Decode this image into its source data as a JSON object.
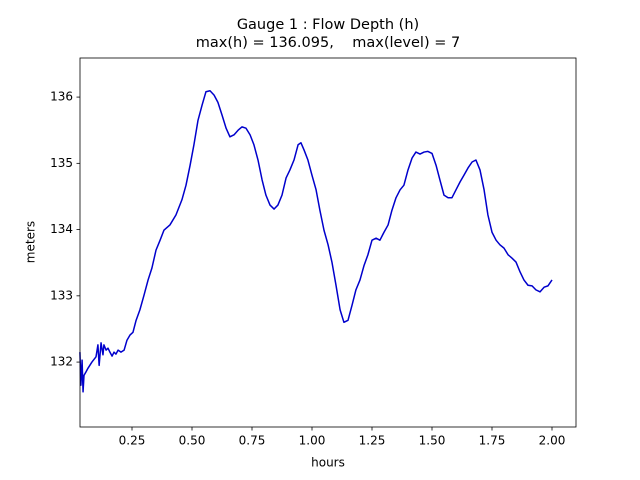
{
  "chart_data": {
    "type": "line",
    "title": "Gauge 1 : Flow Depth (h)",
    "subtitle": "max(h) = 136.095,    max(level) = 7",
    "xlabel": "hours",
    "ylabel": "meters",
    "xlim": [
      0.0333,
      2.1
    ],
    "ylim": [
      131.02,
      136.59
    ],
    "xticks": [
      0.25,
      {
        "value": 0.5,
        "label": "0.50"
      },
      {
        "value": 0.75,
        "label": "0.75"
      },
      {
        "value": 1,
        "label": "1.00"
      },
      1.25,
      {
        "value": 1.5,
        "label": "1.50"
      },
      1.75,
      {
        "value": 2,
        "label": "2.00"
      }
    ],
    "yticks": [
      132,
      133,
      134,
      135,
      136
    ],
    "grid": false,
    "series": [
      {
        "color": "#0000cc",
        "x": [
          0.033,
          0.037,
          0.042,
          0.046,
          0.05,
          0.058,
          0.067,
          0.083,
          0.1,
          0.108,
          0.113,
          0.121,
          0.129,
          0.133,
          0.142,
          0.15,
          0.158,
          0.167,
          0.175,
          0.183,
          0.192,
          0.204,
          0.217,
          0.229,
          0.242,
          0.254,
          0.267,
          0.283,
          0.3,
          0.317,
          0.333,
          0.35,
          0.367,
          0.383,
          0.408,
          0.433,
          0.458,
          0.475,
          0.492,
          0.508,
          0.525,
          0.542,
          0.558,
          0.575,
          0.592,
          0.608,
          0.625,
          0.642,
          0.658,
          0.675,
          0.692,
          0.708,
          0.725,
          0.742,
          0.758,
          0.775,
          0.792,
          0.808,
          0.825,
          0.842,
          0.858,
          0.875,
          0.892,
          0.908,
          0.925,
          0.942,
          0.954,
          0.967,
          0.983,
          1.0,
          1.017,
          1.033,
          1.05,
          1.067,
          1.083,
          1.1,
          1.117,
          1.133,
          1.15,
          1.167,
          1.183,
          1.2,
          1.217,
          1.233,
          1.25,
          1.267,
          1.283,
          1.3,
          1.317,
          1.333,
          1.35,
          1.367,
          1.383,
          1.4,
          1.417,
          1.433,
          1.45,
          1.467,
          1.483,
          1.5,
          1.517,
          1.533,
          1.55,
          1.567,
          1.583,
          1.6,
          1.617,
          1.633,
          1.65,
          1.667,
          1.683,
          1.7,
          1.717,
          1.733,
          1.75,
          1.767,
          1.783,
          1.8,
          1.817,
          1.833,
          1.85,
          1.867,
          1.883,
          1.9,
          1.917,
          1.933,
          1.95,
          1.967,
          1.983,
          2.0
        ],
        "values": [
          132.15,
          131.65,
          132.03,
          131.55,
          131.8,
          131.85,
          131.91,
          132.0,
          132.08,
          132.26,
          131.95,
          132.29,
          132.11,
          132.26,
          132.18,
          132.21,
          132.15,
          132.09,
          132.15,
          132.12,
          132.18,
          132.15,
          132.18,
          132.33,
          132.41,
          132.45,
          132.63,
          132.79,
          133.01,
          133.24,
          133.42,
          133.69,
          133.84,
          133.99,
          134.07,
          134.22,
          134.45,
          134.67,
          134.97,
          135.28,
          135.65,
          135.88,
          136.08,
          136.095,
          136.03,
          135.92,
          135.73,
          135.53,
          135.4,
          135.43,
          135.5,
          135.55,
          135.53,
          135.43,
          135.28,
          135.05,
          134.75,
          134.52,
          134.37,
          134.31,
          134.37,
          134.52,
          134.78,
          134.9,
          135.05,
          135.28,
          135.31,
          135.2,
          135.05,
          134.82,
          134.6,
          134.29,
          133.99,
          133.77,
          133.51,
          133.16,
          132.79,
          132.6,
          132.63,
          132.86,
          133.09,
          133.24,
          133.46,
          133.62,
          133.84,
          133.87,
          133.84,
          133.96,
          134.07,
          134.29,
          134.48,
          134.6,
          134.67,
          134.9,
          135.08,
          135.17,
          135.14,
          135.17,
          135.18,
          135.15,
          134.97,
          134.75,
          134.52,
          134.48,
          134.48,
          134.6,
          134.72,
          134.82,
          134.93,
          135.02,
          135.05,
          134.9,
          134.6,
          134.22,
          133.96,
          133.84,
          133.77,
          133.72,
          133.62,
          133.57,
          133.51,
          133.36,
          133.24,
          133.16,
          133.15,
          133.09,
          133.06,
          133.13,
          133.15,
          133.24
        ]
      }
    ]
  }
}
